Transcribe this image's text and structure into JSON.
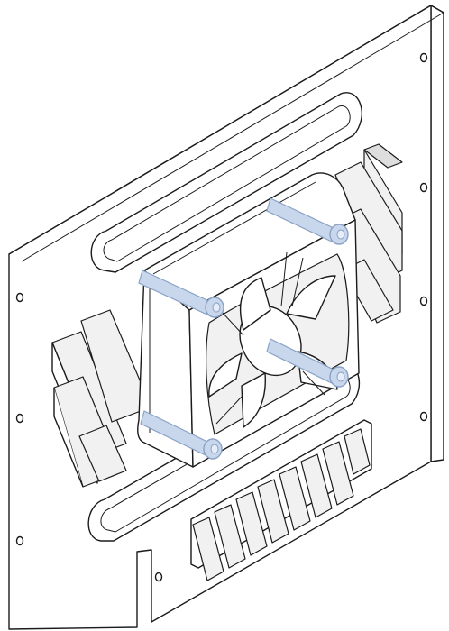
{
  "colors": {
    "outline": "#1b1b1b",
    "background": "#ffffff",
    "screw_fill": "#c9d7ec",
    "screw_edge": "#8aa2c6",
    "screw_highlight": "#e6edf8",
    "vent_shade": "#f1f1f1"
  },
  "components": {
    "panel": "bracket-plate",
    "fan": "cooling-fan",
    "screws": [
      "screw-top-left",
      "screw-top-right",
      "screw-bottom-left",
      "screw-mid-right"
    ]
  }
}
